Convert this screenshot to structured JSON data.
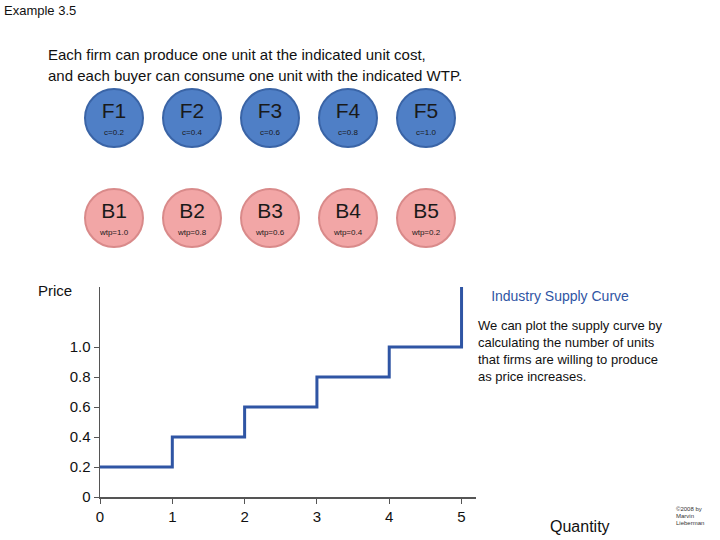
{
  "slide": {
    "header": "Example 3.5",
    "text": [
      "Each firm can produce one unit at the indicated unit cost,",
      "and each buyer can consume one unit with the indicated WTP."
    ],
    "firms": [
      {
        "name": "F1",
        "label": "c=0.2"
      },
      {
        "name": "F2",
        "label": "c=0.4"
      },
      {
        "name": "F3",
        "label": "c=0.6"
      },
      {
        "name": "F4",
        "label": "c=0.8"
      },
      {
        "name": "F5",
        "label": "c=1.0"
      }
    ],
    "buyers": [
      {
        "name": "B1",
        "label": "wtp=1.0"
      },
      {
        "name": "B2",
        "label": "wtp=0.8"
      },
      {
        "name": "B3",
        "label": "wtp=0.6"
      },
      {
        "name": "B4",
        "label": "wtp=0.4"
      },
      {
        "name": "B5",
        "label": "wtp=0.2"
      }
    ],
    "footer": [
      "©2008 by",
      "Marvin",
      "Lieberman"
    ]
  },
  "chart_data": {
    "type": "line",
    "line_style": "step",
    "title": "Industry Supply Curve",
    "xlabel": "Quantity",
    "ylabel": "Price",
    "annotation": [
      "We can plot the supply curve by",
      "calculating the number of units",
      "that firms are willing to produce",
      "as price increases."
    ],
    "x": [
      0,
      1,
      2,
      3,
      4,
      5
    ],
    "values": [
      0.2,
      0.4,
      0.6,
      0.8,
      1.0,
      1.4
    ],
    "color": "#2f55a4",
    "xlim": [
      0,
      5.2
    ],
    "xticks": [
      0,
      1,
      2,
      3,
      4,
      5
    ],
    "ylim": [
      0,
      1.4
    ],
    "yticks": [
      0,
      0.2,
      0.4,
      0.6,
      0.8,
      {
        "value": 1,
        "label": "1.0"
      }
    ],
    "grid": false
  }
}
